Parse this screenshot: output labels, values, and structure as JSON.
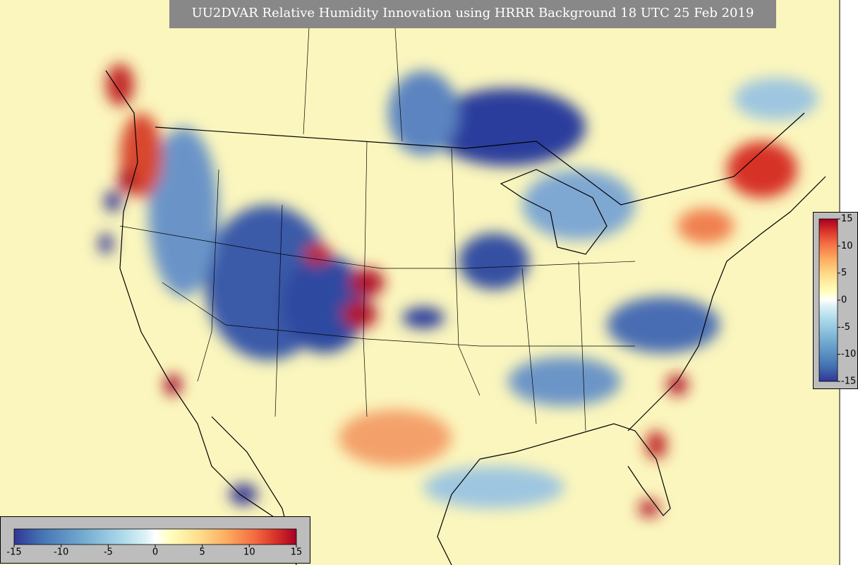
{
  "title": "UU2DVAR Relative Humidity Innovation using HRRR Background 18 UTC 25 Feb 2019",
  "colorbar_bottom": {
    "ticks": [
      -15,
      -10,
      -5,
      0,
      5,
      10,
      15
    ]
  },
  "colorbar_right": {
    "ticks": [
      -15,
      -10,
      -5,
      0,
      5,
      10,
      15
    ]
  }
}
